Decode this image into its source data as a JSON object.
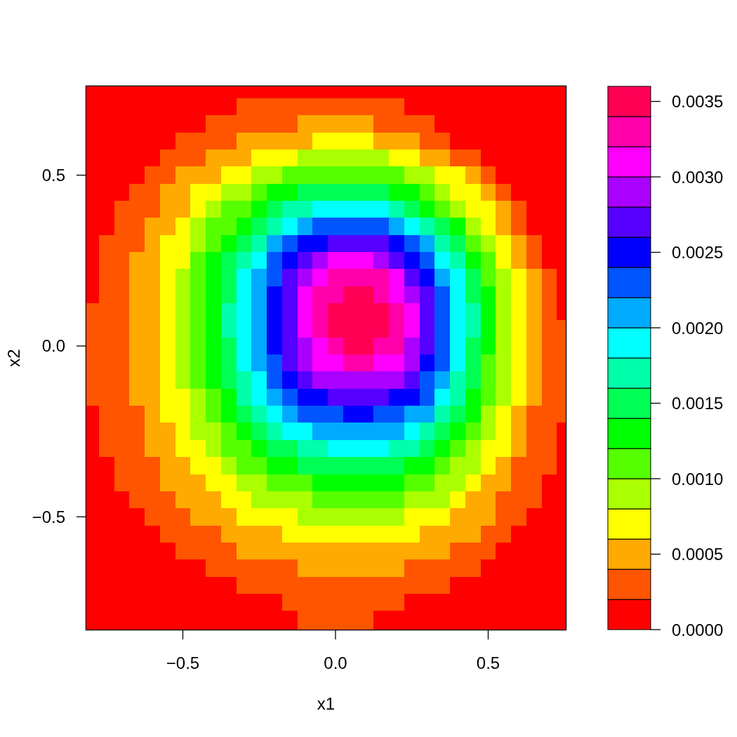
{
  "chart_data": {
    "type": "heatmap",
    "xlabel": "x1",
    "ylabel": "x2",
    "xlim": [
      -0.816,
      0.754
    ],
    "ylim": [
      -0.83,
      0.76
    ],
    "xticks": [
      {
        "value": -0.5,
        "label": "−0.5"
      },
      {
        "value": 0,
        "label": "0.0"
      },
      0.5
    ],
    "yticks": [
      {
        "value": -0.5,
        "label": "−0.5"
      },
      {
        "value": 0,
        "label": "0.0"
      },
      0.5
    ],
    "clim": [
      0,
      0.0036
    ],
    "cticks": [
      {
        "value": 0,
        "label": "0.0000"
      },
      0.0005,
      {
        "value": 0.001,
        "label": "0.0010"
      },
      0.0015,
      {
        "value": 0.002,
        "label": "0.0020"
      },
      0.0025,
      {
        "value": 0.003,
        "label": "0.0030"
      },
      0.0035
    ],
    "colors": [
      "#ff0000",
      "#ff5500",
      "#ffaa00",
      "#ffff00",
      "#aaff00",
      "#55ff00",
      "#00ff00",
      "#00ff55",
      "#00ffaa",
      "#00ffff",
      "#00aaff",
      "#0055ff",
      "#0000ff",
      "#5500ff",
      "#aa00ff",
      "#ff00ff",
      "#ff00aa",
      "#ff0055"
    ],
    "x": [
      -0.8,
      -0.75,
      -0.7,
      -0.65,
      -0.6,
      -0.55,
      -0.5,
      -0.45,
      -0.4,
      -0.35,
      -0.3,
      -0.25,
      -0.2,
      -0.15,
      -0.1,
      -0.05,
      0,
      0.05,
      0.1,
      0.15,
      0.2,
      0.25,
      0.3,
      0.35,
      0.4,
      0.45,
      0.5,
      0.55,
      0.6,
      0.65,
      0.7,
      0.75
    ],
    "y": [
      0.75,
      0.7,
      0.65,
      0.6,
      0.55,
      0.5,
      0.45,
      0.4,
      0.35,
      0.3,
      0.25,
      0.2,
      0.15,
      0.1,
      0.05,
      0,
      -0.05,
      -0.1,
      -0.15,
      -0.2,
      -0.25,
      -0.3,
      -0.35,
      -0.4,
      -0.45,
      -0.5,
      -0.55,
      -0.6,
      -0.65,
      -0.7,
      -0.75,
      -0.8
    ],
    "cells": [
      [
        0.0001,
        0.0001,
        0.0001,
        0.0001,
        0.0001,
        0.0001,
        0.0001,
        0.0001,
        0.0001,
        0.0001,
        0.0001,
        0.0001,
        0.0001,
        0.0001,
        0.0001,
        0.0001,
        0.0001,
        0.0001,
        0.0001,
        0.0001,
        0.0001,
        0.0001,
        0.0001,
        0.0001,
        0.0001,
        0.0001,
        0.0001,
        0.0001,
        0.0001,
        0.0001,
        0.0001,
        0.0001
      ],
      [
        0.0001,
        0.0001,
        0.0001,
        0.0001,
        0.0001,
        0.0001,
        0.0001,
        0.0001,
        0.0001,
        0.0001,
        0.0003,
        0.0003,
        0.0003,
        0.0003,
        0.0003,
        0.0003,
        0.0003,
        0.0003,
        0.0003,
        0.0003,
        0.0003,
        0.0001,
        0.0001,
        0.0001,
        0.0001,
        0.0001,
        0.0001,
        0.0001,
        0.0001,
        0.0001,
        0.0001,
        0.0001
      ],
      [
        0.0001,
        0.0001,
        0.0001,
        0.0001,
        0.0001,
        0.0001,
        0.0001,
        0.0001,
        0.0003,
        0.0003,
        0.0003,
        0.0003,
        0.0003,
        0.0003,
        0.0005,
        0.0005,
        0.0005,
        0.0005,
        0.0005,
        0.0003,
        0.0003,
        0.0003,
        0.0003,
        0.0001,
        0.0001,
        0.0001,
        0.0001,
        0.0001,
        0.0001,
        0.0001,
        0.0001,
        0.0001
      ],
      [
        0.0001,
        0.0001,
        0.0001,
        0.0001,
        0.0001,
        0.0001,
        0.0003,
        0.0003,
        0.0003,
        0.0003,
        0.0005,
        0.0005,
        0.0005,
        0.0005,
        0.0005,
        0.0007,
        0.0007,
        0.0007,
        0.0007,
        0.0005,
        0.0005,
        0.0005,
        0.0003,
        0.0003,
        0.0001,
        0.0001,
        0.0001,
        0.0001,
        0.0001,
        0.0001,
        0.0001,
        0.0001
      ],
      [
        0.0001,
        0.0001,
        0.0001,
        0.0001,
        0.0001,
        0.0003,
        0.0003,
        0.0003,
        0.0005,
        0.0005,
        0.0005,
        0.0007,
        0.0007,
        0.0007,
        0.0009,
        0.0009,
        0.0009,
        0.0009,
        0.0009,
        0.0009,
        0.0007,
        0.0007,
        0.0005,
        0.0005,
        0.0003,
        0.0003,
        0.0001,
        0.0001,
        0.0001,
        0.0001,
        0.0001,
        0.0001
      ],
      [
        0.0001,
        0.0001,
        0.0001,
        0.0001,
        0.0003,
        0.0003,
        0.0005,
        0.0005,
        0.0005,
        0.0007,
        0.0007,
        0.0009,
        0.0009,
        0.0011,
        0.0011,
        0.0011,
        0.0011,
        0.0011,
        0.0011,
        0.0011,
        0.0011,
        0.0009,
        0.0009,
        0.0007,
        0.0007,
        0.0005,
        0.0003,
        0.0001,
        0.0001,
        0.0001,
        0.0001,
        0.0001
      ],
      [
        0.0001,
        0.0001,
        0.0001,
        0.0003,
        0.0003,
        0.0005,
        0.0005,
        0.0007,
        0.0007,
        0.0009,
        0.0009,
        0.0011,
        0.0013,
        0.0013,
        0.0015,
        0.0015,
        0.0015,
        0.0015,
        0.0015,
        0.0015,
        0.0013,
        0.0013,
        0.0011,
        0.0009,
        0.0007,
        0.0007,
        0.0005,
        0.0003,
        0.0001,
        0.0001,
        0.0001,
        0.0001
      ],
      [
        0.0001,
        0.0001,
        0.0003,
        0.0003,
        0.0003,
        0.0005,
        0.0005,
        0.0007,
        0.0009,
        0.0011,
        0.0011,
        0.0013,
        0.0015,
        0.0017,
        0.0017,
        0.0019,
        0.0019,
        0.0019,
        0.0019,
        0.0019,
        0.0017,
        0.0015,
        0.0013,
        0.0011,
        0.0009,
        0.0007,
        0.0007,
        0.0005,
        0.0003,
        0.0001,
        0.0001,
        0.0001
      ],
      [
        0.0001,
        0.0001,
        0.0003,
        0.0003,
        0.0005,
        0.0005,
        0.0007,
        0.0009,
        0.0011,
        0.0011,
        0.0013,
        0.0015,
        0.0017,
        0.0019,
        0.0021,
        0.0023,
        0.0023,
        0.0023,
        0.0023,
        0.0023,
        0.0021,
        0.0019,
        0.0017,
        0.0015,
        0.0013,
        0.0009,
        0.0007,
        0.0005,
        0.0003,
        0.0001,
        0.0001,
        0.0001
      ],
      [
        0.0001,
        0.0003,
        0.0003,
        0.0003,
        0.0005,
        0.0007,
        0.0007,
        0.0009,
        0.0011,
        0.0013,
        0.0015,
        0.0017,
        0.0021,
        0.0023,
        0.0025,
        0.0025,
        0.0027,
        0.0027,
        0.0027,
        0.0027,
        0.0025,
        0.0023,
        0.0021,
        0.0017,
        0.0015,
        0.0011,
        0.0009,
        0.0007,
        0.0005,
        0.0003,
        0.0001,
        0.0001
      ],
      [
        0.0001,
        0.0003,
        0.0003,
        0.0005,
        0.0005,
        0.0007,
        0.0007,
        0.0011,
        0.0013,
        0.0015,
        0.0017,
        0.0019,
        0.0023,
        0.0025,
        0.0027,
        0.0029,
        0.0031,
        0.0031,
        0.0031,
        0.0029,
        0.0027,
        0.0025,
        0.0023,
        0.0019,
        0.0017,
        0.0013,
        0.0011,
        0.0007,
        0.0005,
        0.0003,
        0.0001,
        0.0001
      ],
      [
        0.0001,
        0.0003,
        0.0003,
        0.0005,
        0.0005,
        0.0007,
        0.0009,
        0.0011,
        0.0013,
        0.0015,
        0.0019,
        0.0021,
        0.0023,
        0.0027,
        0.0029,
        0.0031,
        0.0033,
        0.0033,
        0.0033,
        0.0033,
        0.0031,
        0.0027,
        0.0025,
        0.0021,
        0.0019,
        0.0015,
        0.0011,
        0.0009,
        0.0007,
        0.0005,
        0.0003,
        0.0001
      ],
      [
        0.0001,
        0.0003,
        0.0003,
        0.0005,
        0.0005,
        0.0007,
        0.0009,
        0.0011,
        0.0013,
        0.0015,
        0.0019,
        0.0021,
        0.0025,
        0.0027,
        0.0031,
        0.0033,
        0.0033,
        0.0035,
        0.0035,
        0.0033,
        0.0031,
        0.0029,
        0.0027,
        0.0023,
        0.0019,
        0.0015,
        0.0013,
        0.0009,
        0.0007,
        0.0005,
        0.0003,
        0.0001
      ],
      [
        0.0003,
        0.0003,
        0.0003,
        0.0005,
        0.0005,
        0.0007,
        0.0009,
        0.0011,
        0.0013,
        0.0017,
        0.0019,
        0.0021,
        0.0025,
        0.0027,
        0.0031,
        0.0033,
        0.0035,
        0.0035,
        0.0035,
        0.0035,
        0.0033,
        0.0031,
        0.0027,
        0.0023,
        0.0019,
        0.0017,
        0.0013,
        0.0009,
        0.0007,
        0.0005,
        0.0003,
        0.0001
      ],
      [
        0.0003,
        0.0003,
        0.0003,
        0.0005,
        0.0005,
        0.0007,
        0.0009,
        0.0011,
        0.0013,
        0.0017,
        0.0019,
        0.0021,
        0.0025,
        0.0027,
        0.0031,
        0.0033,
        0.0035,
        0.0035,
        0.0035,
        0.0035,
        0.0033,
        0.0031,
        0.0027,
        0.0023,
        0.0019,
        0.0017,
        0.0013,
        0.0009,
        0.0007,
        0.0005,
        0.0003,
        0.0003
      ],
      [
        0.0003,
        0.0003,
        0.0003,
        0.0005,
        0.0005,
        0.0007,
        0.0009,
        0.0011,
        0.0013,
        0.0015,
        0.0019,
        0.0021,
        0.0025,
        0.0027,
        0.0029,
        0.0031,
        0.0033,
        0.0035,
        0.0035,
        0.0033,
        0.0033,
        0.0029,
        0.0027,
        0.0023,
        0.0019,
        0.0015,
        0.0013,
        0.0009,
        0.0007,
        0.0005,
        0.0003,
        0.0003
      ],
      [
        0.0003,
        0.0003,
        0.0003,
        0.0005,
        0.0005,
        0.0007,
        0.0009,
        0.0011,
        0.0013,
        0.0015,
        0.0019,
        0.0021,
        0.0023,
        0.0027,
        0.0029,
        0.0031,
        0.0031,
        0.0033,
        0.0033,
        0.0031,
        0.0031,
        0.0029,
        0.0025,
        0.0023,
        0.0019,
        0.0015,
        0.0011,
        0.0009,
        0.0007,
        0.0005,
        0.0003,
        0.0003
      ],
      [
        0.0003,
        0.0003,
        0.0003,
        0.0005,
        0.0005,
        0.0007,
        0.0009,
        0.0011,
        0.0013,
        0.0015,
        0.0017,
        0.0019,
        0.0023,
        0.0025,
        0.0027,
        0.0029,
        0.0029,
        0.0029,
        0.0029,
        0.0029,
        0.0029,
        0.0027,
        0.0023,
        0.0021,
        0.0017,
        0.0015,
        0.0011,
        0.0009,
        0.0007,
        0.0005,
        0.0003,
        0.0003
      ],
      [
        0.0003,
        0.0003,
        0.0003,
        0.0005,
        0.0005,
        0.0007,
        0.0007,
        0.0009,
        0.0011,
        0.0013,
        0.0017,
        0.0019,
        0.0021,
        0.0023,
        0.0025,
        0.0025,
        0.0027,
        0.0027,
        0.0027,
        0.0027,
        0.0025,
        0.0025,
        0.0023,
        0.0019,
        0.0017,
        0.0013,
        0.0011,
        0.0009,
        0.0007,
        0.0005,
        0.0003,
        0.0003
      ],
      [
        0.0001,
        0.0003,
        0.0003,
        0.0003,
        0.0005,
        0.0007,
        0.0007,
        0.0009,
        0.0011,
        0.0013,
        0.0015,
        0.0017,
        0.0019,
        0.0021,
        0.0023,
        0.0023,
        0.0023,
        0.0025,
        0.0025,
        0.0023,
        0.0023,
        0.0021,
        0.0021,
        0.0017,
        0.0015,
        0.0013,
        0.0009,
        0.0007,
        0.0005,
        0.0003,
        0.0003,
        0.0003
      ],
      [
        0.0001,
        0.0003,
        0.0003,
        0.0003,
        0.0005,
        0.0005,
        0.0007,
        0.0009,
        0.0009,
        0.0011,
        0.0013,
        0.0015,
        0.0017,
        0.0019,
        0.0019,
        0.0021,
        0.0021,
        0.0021,
        0.0021,
        0.0021,
        0.0021,
        0.0019,
        0.0017,
        0.0015,
        0.0013,
        0.0011,
        0.0009,
        0.0007,
        0.0005,
        0.0003,
        0.0003,
        0.0001
      ],
      [
        0.0001,
        0.0003,
        0.0003,
        0.0003,
        0.0005,
        0.0005,
        0.0007,
        0.0007,
        0.0009,
        0.0011,
        0.0011,
        0.0013,
        0.0015,
        0.0015,
        0.0017,
        0.0017,
        0.0019,
        0.0019,
        0.0019,
        0.0019,
        0.0017,
        0.0017,
        0.0015,
        0.0013,
        0.0011,
        0.0009,
        0.0007,
        0.0007,
        0.0005,
        0.0003,
        0.0003,
        0.0001
      ],
      [
        0.0001,
        0.0001,
        0.0003,
        0.0003,
        0.0003,
        0.0005,
        0.0005,
        0.0007,
        0.0007,
        0.0009,
        0.0011,
        0.0011,
        0.0013,
        0.0013,
        0.0015,
        0.0015,
        0.0015,
        0.0015,
        0.0015,
        0.0015,
        0.0015,
        0.0013,
        0.0013,
        0.0011,
        0.0009,
        0.0009,
        0.0007,
        0.0005,
        0.0003,
        0.0003,
        0.0003,
        0.0001
      ],
      [
        0.0001,
        0.0001,
        0.0003,
        0.0003,
        0.0003,
        0.0005,
        0.0005,
        0.0005,
        0.0007,
        0.0007,
        0.0009,
        0.0009,
        0.0011,
        0.0011,
        0.0011,
        0.0013,
        0.0013,
        0.0013,
        0.0013,
        0.0013,
        0.0013,
        0.0011,
        0.0011,
        0.0009,
        0.0009,
        0.0007,
        0.0005,
        0.0005,
        0.0003,
        0.0003,
        0.0001,
        0.0001
      ],
      [
        0.0001,
        0.0001,
        0.0001,
        0.0003,
        0.0003,
        0.0003,
        0.0005,
        0.0005,
        0.0005,
        0.0007,
        0.0007,
        0.0009,
        0.0009,
        0.0009,
        0.0009,
        0.0011,
        0.0011,
        0.0011,
        0.0011,
        0.0011,
        0.0011,
        0.0009,
        0.0009,
        0.0009,
        0.0007,
        0.0005,
        0.0005,
        0.0003,
        0.0003,
        0.0003,
        0.0001,
        0.0001
      ],
      [
        0.0001,
        0.0001,
        0.0001,
        0.0001,
        0.0003,
        0.0003,
        0.0003,
        0.0005,
        0.0005,
        0.0005,
        0.0007,
        0.0007,
        0.0007,
        0.0007,
        0.0009,
        0.0009,
        0.0009,
        0.0009,
        0.0009,
        0.0009,
        0.0009,
        0.0007,
        0.0007,
        0.0007,
        0.0005,
        0.0005,
        0.0005,
        0.0003,
        0.0003,
        0.0001,
        0.0001,
        0.0001
      ],
      [
        0.0001,
        0.0001,
        0.0001,
        0.0001,
        0.0001,
        0.0003,
        0.0003,
        0.0003,
        0.0003,
        0.0005,
        0.0005,
        0.0005,
        0.0005,
        0.0007,
        0.0007,
        0.0007,
        0.0007,
        0.0007,
        0.0007,
        0.0007,
        0.0007,
        0.0007,
        0.0005,
        0.0005,
        0.0005,
        0.0005,
        0.0003,
        0.0003,
        0.0001,
        0.0001,
        0.0001,
        0.0001
      ],
      [
        0.0001,
        0.0001,
        0.0001,
        0.0001,
        0.0001,
        0.0001,
        0.0003,
        0.0003,
        0.0003,
        0.0003,
        0.0005,
        0.0005,
        0.0005,
        0.0005,
        0.0005,
        0.0005,
        0.0005,
        0.0005,
        0.0005,
        0.0005,
        0.0005,
        0.0005,
        0.0005,
        0.0005,
        0.0003,
        0.0003,
        0.0003,
        0.0001,
        0.0001,
        0.0001,
        0.0001,
        0.0001
      ],
      [
        0.0001,
        0.0001,
        0.0001,
        0.0001,
        0.0001,
        0.0001,
        0.0001,
        0.0001,
        0.0003,
        0.0003,
        0.0003,
        0.0003,
        0.0003,
        0.0003,
        0.0005,
        0.0005,
        0.0005,
        0.0005,
        0.0005,
        0.0005,
        0.0005,
        0.0003,
        0.0003,
        0.0003,
        0.0003,
        0.0003,
        0.0001,
        0.0001,
        0.0001,
        0.0001,
        0.0001,
        0.0001
      ],
      [
        0.0001,
        0.0001,
        0.0001,
        0.0001,
        0.0001,
        0.0001,
        0.0001,
        0.0001,
        0.0001,
        0.0001,
        0.0003,
        0.0003,
        0.0003,
        0.0003,
        0.0003,
        0.0003,
        0.0003,
        0.0003,
        0.0003,
        0.0003,
        0.0003,
        0.0003,
        0.0003,
        0.0003,
        0.0001,
        0.0001,
        0.0001,
        0.0001,
        0.0001,
        0.0001,
        0.0001,
        0.0001
      ],
      [
        0.0001,
        0.0001,
        0.0001,
        0.0001,
        0.0001,
        0.0001,
        0.0001,
        0.0001,
        0.0001,
        0.0001,
        0.0001,
        0.0001,
        0.0001,
        0.0003,
        0.0003,
        0.0003,
        0.0003,
        0.0003,
        0.0003,
        0.0003,
        0.0003,
        0.0001,
        0.0001,
        0.0001,
        0.0001,
        0.0001,
        0.0001,
        0.0001,
        0.0001,
        0.0001,
        0.0001,
        0.0001
      ],
      [
        0.0001,
        0.0001,
        0.0001,
        0.0001,
        0.0001,
        0.0001,
        0.0001,
        0.0001,
        0.0001,
        0.0001,
        0.0001,
        0.0001,
        0.0001,
        0.0001,
        0.0003,
        0.0003,
        0.0003,
        0.0003,
        0.0003,
        0.0001,
        0.0001,
        0.0001,
        0.0001,
        0.0001,
        0.0001,
        0.0001,
        0.0001,
        0.0001,
        0.0001,
        0.0001,
        0.0001,
        0.0001
      ]
    ]
  }
}
